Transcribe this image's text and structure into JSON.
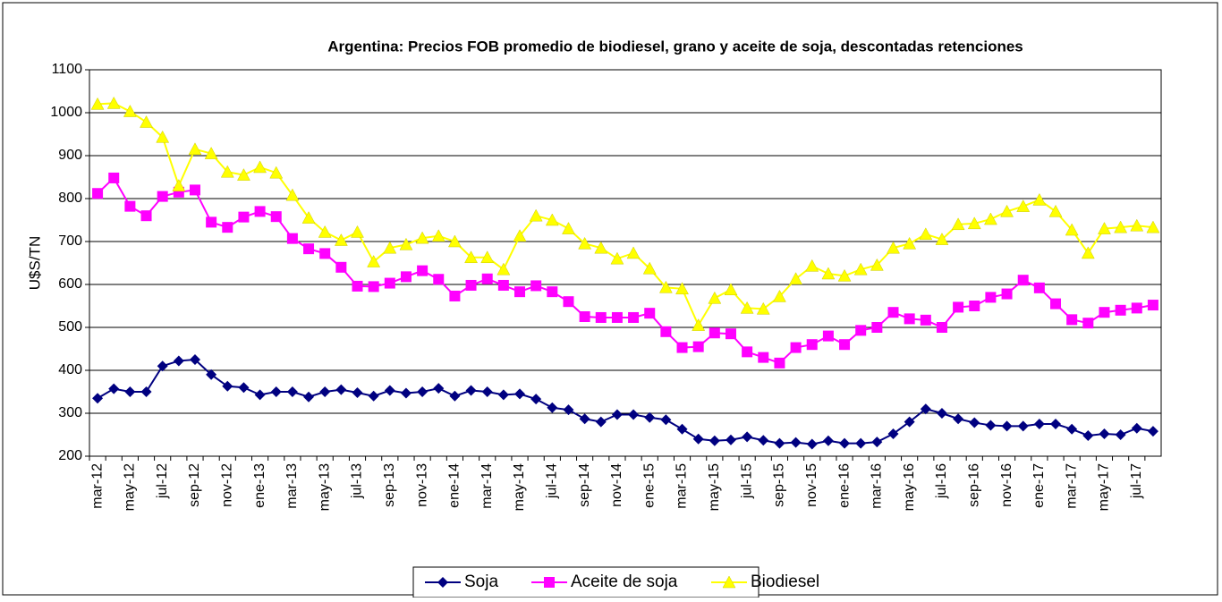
{
  "chart_data": {
    "type": "line",
    "title": "Argentina: Precios FOB promedio de biodiesel, grano y aceite de soja, descontadas retenciones",
    "ylabel": "U$S/TN",
    "categories": [
      "mar-12",
      null,
      "may-12",
      null,
      "jul-12",
      null,
      "sep-12",
      null,
      "nov-12",
      null,
      "ene-13",
      null,
      "mar-13",
      null,
      "may-13",
      null,
      "jul-13",
      null,
      "sep-13",
      null,
      "nov-13",
      null,
      "ene-14",
      null,
      "mar-14",
      null,
      "may-14",
      null,
      "jul-14",
      null,
      "sep-14",
      null,
      "nov-14",
      null,
      "ene-15",
      null,
      "mar-15",
      null,
      "may-15",
      null,
      "jul-15",
      null,
      "sep-15",
      null,
      "nov-15",
      null,
      "ene-16",
      null,
      "mar-16",
      null,
      "may-16",
      null,
      "jul-16",
      null,
      "sep-16",
      null,
      "nov-16",
      null,
      "ene-17",
      null,
      "mar-17",
      null,
      "may-17",
      null,
      "jul-17",
      null
    ],
    "series": [
      {
        "name": "Soja",
        "color": "#000080",
        "marker": "diamond",
        "values": [
          335,
          357,
          350,
          350,
          410,
          422,
          425,
          390,
          363,
          360,
          343,
          350,
          350,
          338,
          350,
          355,
          348,
          340,
          353,
          347,
          350,
          358,
          340,
          353,
          350,
          343,
          345,
          333,
          313,
          308,
          287,
          280,
          297,
          297,
          290,
          285,
          263,
          240,
          236,
          238,
          245,
          237,
          230,
          232,
          228,
          236,
          230,
          230,
          233,
          252,
          280,
          310,
          300,
          287,
          278,
          272,
          270,
          270,
          275,
          275,
          263,
          248,
          252,
          250,
          265,
          258
        ]
      },
      {
        "name": "Aceite de soja",
        "color": "#ff00ff",
        "marker": "square",
        "values": [
          812,
          848,
          782,
          760,
          805,
          815,
          820,
          745,
          733,
          757,
          770,
          758,
          707,
          683,
          672,
          640,
          596,
          595,
          603,
          618,
          632,
          612,
          573,
          598,
          613,
          598,
          583,
          597,
          583,
          560,
          525,
          523,
          523,
          523,
          533,
          490,
          453,
          455,
          487,
          485,
          443,
          430,
          417,
          453,
          460,
          480,
          460,
          493,
          500,
          535,
          520,
          517,
          500,
          547,
          550,
          570,
          578,
          610,
          592,
          555,
          518,
          510,
          535,
          540,
          545,
          552
        ]
      },
      {
        "name": "Biodiesel",
        "color": "#ffff00",
        "marker": "triangle",
        "values": [
          1020,
          1022,
          1003,
          978,
          943,
          830,
          915,
          905,
          862,
          855,
          873,
          860,
          808,
          755,
          722,
          703,
          722,
          653,
          685,
          693,
          708,
          713,
          700,
          663,
          663,
          635,
          713,
          760,
          750,
          730,
          695,
          685,
          660,
          673,
          637,
          593,
          590,
          505,
          568,
          588,
          545,
          543,
          572,
          613,
          643,
          625,
          620,
          635,
          645,
          685,
          695,
          717,
          705,
          740,
          742,
          752,
          770,
          782,
          797,
          770,
          727,
          673,
          730,
          733,
          737,
          733
        ]
      }
    ],
    "ylim": [
      200,
      1100
    ],
    "yticks": [
      200,
      300,
      400,
      500,
      600,
      700,
      800,
      900,
      1000,
      1100
    ],
    "grid": true,
    "legend": "bottom"
  }
}
